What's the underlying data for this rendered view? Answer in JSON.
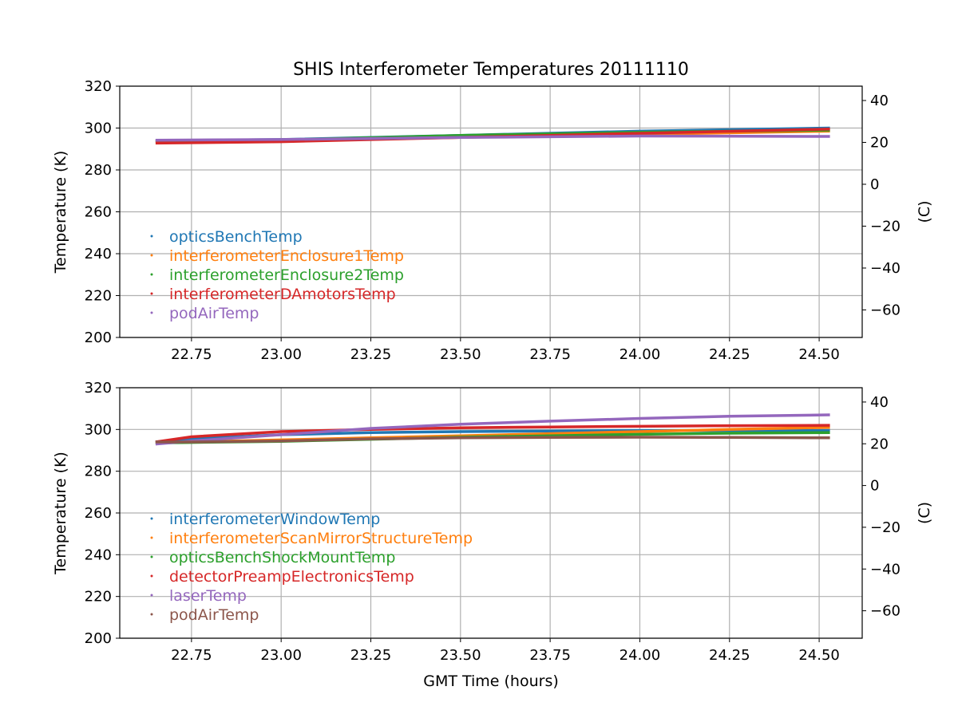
{
  "title": "SHIS Interferometer Temperatures 20111110",
  "xlabel": "GMT Time (hours)",
  "chart_data": [
    {
      "type": "line",
      "ylabel": "Temperature (K)",
      "ylabel_right": "(C)",
      "xlim": [
        22.55,
        24.62
      ],
      "ylim": [
        200,
        320
      ],
      "ylim_right_note": "Celsius equivalent of left axis",
      "x_ticks": [
        "22.75",
        "23.00",
        "23.25",
        "23.50",
        "23.75",
        "24.00",
        "24.25",
        "24.50"
      ],
      "y_ticks": [
        "200",
        "220",
        "240",
        "260",
        "280",
        "300",
        "320"
      ],
      "y_right_ticks": [
        "−60",
        "−40",
        "−20",
        "0",
        "20",
        "40"
      ],
      "grid": true,
      "legend": "left",
      "x": [
        22.65,
        23.0,
        23.5,
        24.0,
        24.53
      ],
      "series": [
        {
          "name": "opticsBenchTemp",
          "color": "#1f77b4",
          "values": [
            294.0,
            294.5,
            296.5,
            298.5,
            300.0
          ]
        },
        {
          "name": "interferometerEnclosure1Temp",
          "color": "#ff7f0e",
          "values": [
            293.5,
            294.0,
            295.5,
            297.0,
            298.5
          ]
        },
        {
          "name": "interferometerEnclosure2Temp",
          "color": "#2ca02c",
          "values": [
            293.8,
            294.3,
            296.5,
            298.0,
            299.0
          ]
        },
        {
          "name": "interferometerDAmotorsTemp",
          "color": "#d62728",
          "values": [
            292.8,
            293.5,
            295.5,
            297.5,
            299.5
          ]
        },
        {
          "name": "podAirTemp",
          "color": "#9467bd",
          "values": [
            294.2,
            294.5,
            295.5,
            296.2,
            296.0
          ]
        }
      ]
    },
    {
      "type": "line",
      "ylabel": "Temperature (K)",
      "ylabel_right": "(C)",
      "xlim": [
        22.55,
        24.62
      ],
      "ylim": [
        200,
        320
      ],
      "x_ticks": [
        "22.75",
        "23.00",
        "23.25",
        "23.50",
        "23.75",
        "24.00",
        "24.25",
        "24.50"
      ],
      "y_ticks": [
        "200",
        "220",
        "240",
        "260",
        "280",
        "300",
        "320"
      ],
      "y_right_ticks": [
        "−60",
        "−40",
        "−20",
        "0",
        "20",
        "40"
      ],
      "grid": true,
      "legend": "left",
      "x": [
        22.65,
        22.75,
        23.0,
        23.25,
        23.5,
        23.75,
        24.0,
        24.25,
        24.53
      ],
      "series": [
        {
          "name": "interferometerWindowTemp",
          "color": "#1f77b4",
          "values": [
            294.0,
            295.5,
            297.5,
            298.5,
            299.0,
            299.3,
            299.5,
            299.5,
            299.5
          ]
        },
        {
          "name": "interferometerScanMirrorStructureTemp",
          "color": "#ff7f0e",
          "values": [
            293.5,
            294.0,
            295.0,
            296.0,
            297.0,
            298.0,
            299.0,
            300.0,
            301.0
          ]
        },
        {
          "name": "opticsBenchShockMountTemp",
          "color": "#2ca02c",
          "values": [
            293.5,
            293.8,
            294.3,
            295.3,
            296.3,
            297.0,
            297.7,
            298.2,
            298.5
          ]
        },
        {
          "name": "detectorPreampElectronicsTemp",
          "color": "#d62728",
          "values": [
            294.0,
            296.5,
            299.0,
            300.0,
            300.8,
            301.2,
            301.5,
            301.8,
            302.0
          ]
        },
        {
          "name": "laserTemp",
          "color": "#9467bd",
          "values": [
            293.0,
            294.5,
            297.5,
            300.5,
            302.5,
            304.0,
            305.3,
            306.3,
            307.0
          ]
        },
        {
          "name": "podAirTemp",
          "color": "#8c564b",
          "values": [
            294.0,
            294.0,
            294.5,
            295.5,
            296.0,
            296.2,
            296.3,
            296.2,
            296.0
          ]
        }
      ]
    }
  ]
}
